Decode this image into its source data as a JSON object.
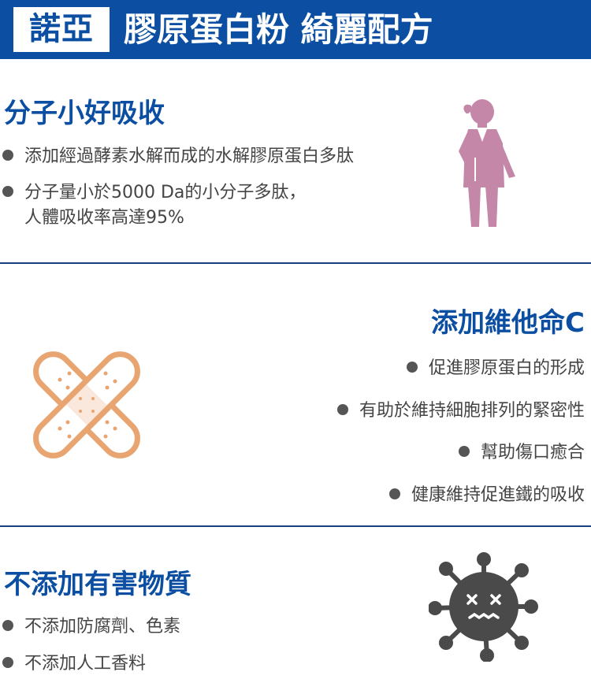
{
  "header": {
    "brand": "諾亞",
    "title": "膠原蛋白粉 綺麗配方"
  },
  "section1": {
    "title": "分子小好吸收",
    "bullets": [
      "添加經過酵素水解而成的水解膠原蛋白多肽",
      "分子量小於5000 Da的小分子多肽，",
      "人體吸收率高達95%"
    ],
    "icon": "woman-icon"
  },
  "section2": {
    "title": "添加維他命C",
    "bullets": [
      "促進膠原蛋白的形成",
      "有助於維持細胞排列的緊密性",
      "幫助傷口癒合",
      "健康維持促進鐵的吸收"
    ],
    "icon": "bandage-icon"
  },
  "section3": {
    "title": "不添加有害物質",
    "bullets": [
      "不添加防腐劑、色素",
      "不添加人工香料"
    ],
    "icon": "virus-icon"
  },
  "colors": {
    "brand_blue": "#0b4ea2",
    "woman_pink": "#c487a8",
    "bandage_orange": "#e8a571",
    "virus_gray": "#4a4a4a"
  }
}
